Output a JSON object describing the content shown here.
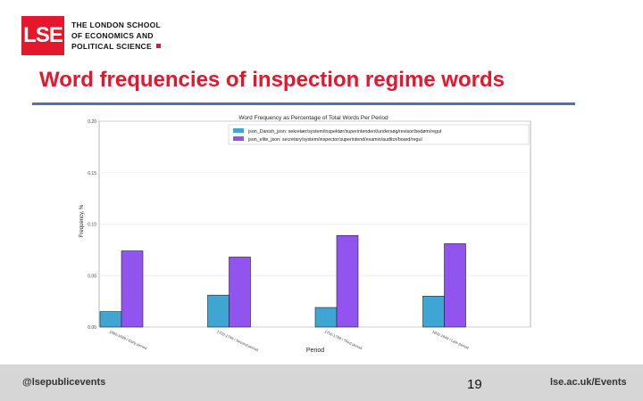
{
  "logo": {
    "mark": "LSE",
    "lines": [
      "THE LONDON SCHOOL",
      "OF ECONOMICS AND",
      "POLITICAL SCIENCE"
    ]
  },
  "slide": {
    "title": "Word frequencies of inspection regime words"
  },
  "footer": {
    "left": "@lsepublicevents",
    "page_number": "19",
    "right": "lse.ac.uk/Events"
  },
  "colors": {
    "brand_red": "#e4172d",
    "rule_blue": "#4f74ad",
    "series_1": "#3fa6d3",
    "series_2": "#9254ee"
  },
  "chart_data": {
    "type": "bar",
    "title": "Word Frequency as Percentage of Total Words Per Period",
    "xlabel": "Period",
    "ylabel": "Frequency, %",
    "ylim": [
      0,
      0.2
    ],
    "yticks": [
      "0.00",
      "0.05",
      "0.10",
      "0.15",
      "0.20"
    ],
    "categories": [
      "1660-1699 / Early period",
      "1700-1749 / Second period",
      "1750-1799 / Third period",
      "1800-1849 / Late period"
    ],
    "legend_position": "top-right",
    "series": [
      {
        "name": "json_Danish_json: sekretær/system/inspektør/superintendent/undersøg/revisor/bedøm/regul",
        "values": [
          0.015,
          0.031,
          0.019,
          0.03
        ]
      },
      {
        "name": "json_elite_json: secretary/system/inspector/superintend/examin/auditor/board/regul",
        "values": [
          0.074,
          0.068,
          0.089,
          0.081
        ]
      }
    ]
  }
}
